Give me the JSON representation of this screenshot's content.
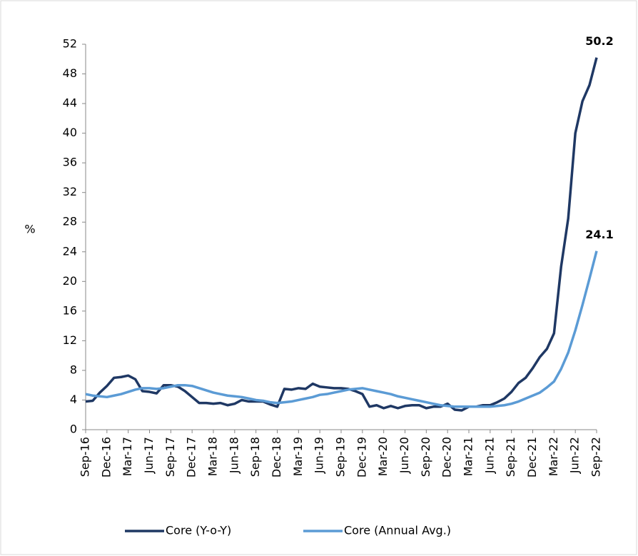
{
  "chart_data": {
    "type": "line",
    "y_label": "%",
    "categories": [
      "Sep-16",
      null,
      null,
      "Dec-16",
      null,
      null,
      "Mar-17",
      null,
      null,
      "Jun-17",
      null,
      null,
      "Sep-17",
      null,
      null,
      "Dec-17",
      null,
      null,
      "Mar-18",
      null,
      null,
      "Jun-18",
      null,
      null,
      "Sep-18",
      null,
      null,
      "Dec-18",
      null,
      null,
      "Mar-19",
      null,
      null,
      "Jun-19",
      null,
      null,
      "Sep-19",
      null,
      null,
      "Dec-19",
      null,
      null,
      "Mar-20",
      null,
      null,
      "Jun-20",
      null,
      null,
      "Sep-20",
      null,
      null,
      "Dec-20",
      null,
      null,
      "Mar-21",
      null,
      null,
      "Jun-21",
      null,
      null,
      "Sep-21",
      null,
      null,
      "Dec-21",
      null,
      null,
      "Mar-22",
      null,
      null,
      "Jun-22",
      null,
      null,
      "Sep-22"
    ],
    "series": [
      {
        "name": "Core (Y-o-Y)",
        "color": "#1f3864",
        "values": [
          3.8,
          3.9,
          5.0,
          5.9,
          7.0,
          7.1,
          7.3,
          6.8,
          5.2,
          5.1,
          4.9,
          6.0,
          6.0,
          5.8,
          5.2,
          4.4,
          3.6,
          3.6,
          3.5,
          3.6,
          3.3,
          3.5,
          4.0,
          3.8,
          3.8,
          3.8,
          3.4,
          3.1,
          5.5,
          5.4,
          5.6,
          5.5,
          6.2,
          5.8,
          5.7,
          5.6,
          5.6,
          5.5,
          5.2,
          4.8,
          3.1,
          3.3,
          2.9,
          3.2,
          2.9,
          3.2,
          3.3,
          3.3,
          2.9,
          3.1,
          3.1,
          3.5,
          2.7,
          2.6,
          3.1,
          3.1,
          3.3,
          3.3,
          3.7,
          4.2,
          5.1,
          6.3,
          7.0,
          8.3,
          9.8,
          10.9,
          13.0,
          22.0,
          28.5,
          40.0,
          44.3,
          46.5,
          50.2
        ]
      },
      {
        "name": "Core (Annual Avg.)",
        "color": "#5b9bd5",
        "values": [
          4.8,
          4.6,
          4.5,
          4.4,
          4.6,
          4.8,
          5.1,
          5.4,
          5.6,
          5.6,
          5.5,
          5.6,
          5.8,
          6.0,
          6.0,
          5.9,
          5.6,
          5.3,
          5.0,
          4.8,
          4.6,
          4.5,
          4.4,
          4.2,
          4.0,
          3.9,
          3.7,
          3.6,
          3.7,
          3.8,
          4.0,
          4.2,
          4.4,
          4.7,
          4.8,
          5.0,
          5.2,
          5.4,
          5.5,
          5.6,
          5.4,
          5.2,
          5.0,
          4.8,
          4.5,
          4.3,
          4.1,
          3.9,
          3.7,
          3.5,
          3.3,
          3.2,
          3.1,
          3.1,
          3.1,
          3.1,
          3.1,
          3.1,
          3.2,
          3.3,
          3.5,
          3.8,
          4.2,
          4.6,
          5.0,
          5.7,
          6.5,
          8.2,
          10.4,
          13.4,
          16.8,
          20.4,
          24.1
        ]
      }
    ],
    "ylim": [
      0,
      52
    ],
    "yticks": [
      0,
      4,
      8,
      12,
      16,
      20,
      24,
      28,
      32,
      36,
      40,
      44,
      48,
      52
    ],
    "grid": false
  }
}
